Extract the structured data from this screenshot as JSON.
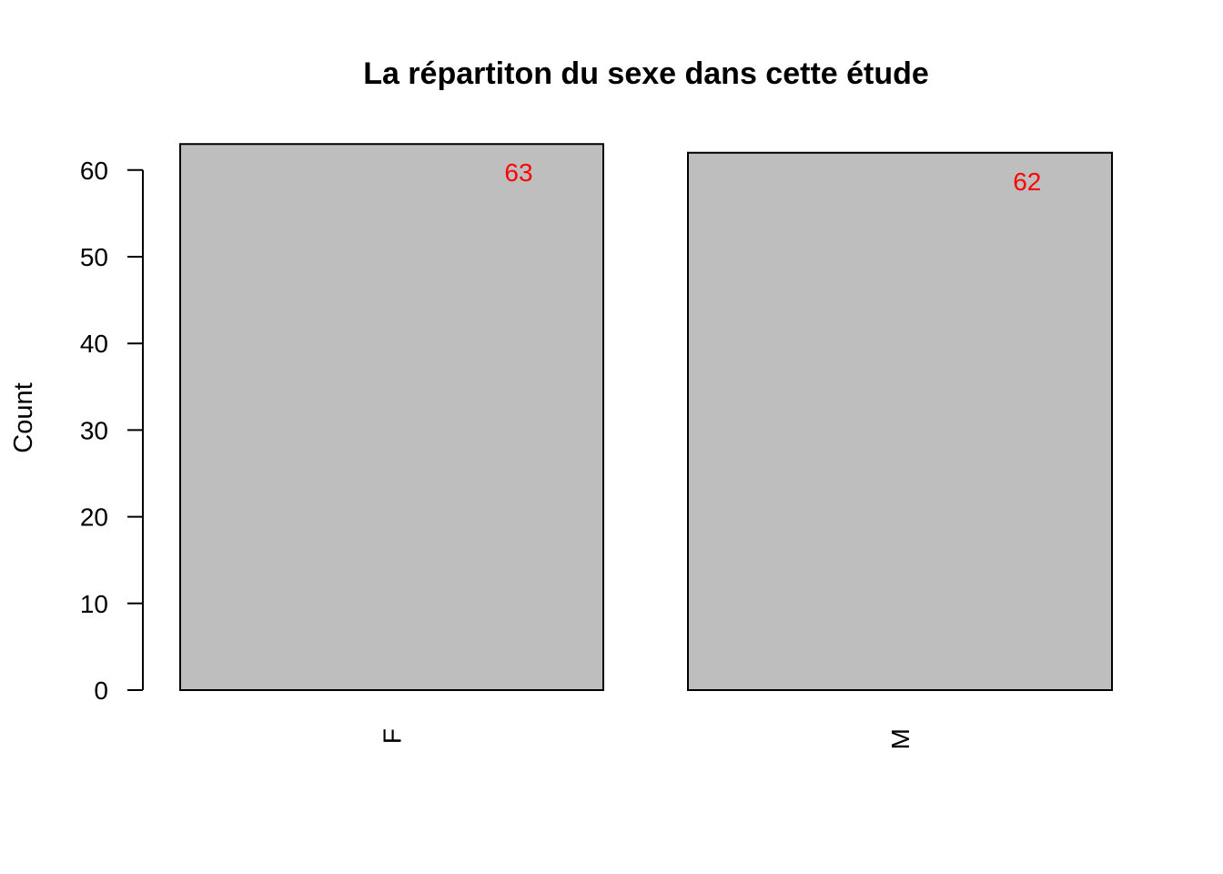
{
  "chart_data": {
    "type": "bar",
    "title": "La répartiton du sexe dans cette étude",
    "xlabel": "",
    "ylabel": "Count",
    "categories": [
      "F",
      "M"
    ],
    "values": [
      63,
      62
    ],
    "data_labels": [
      "63",
      "62"
    ],
    "yticks": [
      0,
      10,
      20,
      30,
      40,
      50,
      60
    ],
    "ytick_labels": [
      "0",
      "10",
      "20",
      "30",
      "40",
      "50",
      "60"
    ],
    "ylim": [
      0,
      63
    ],
    "grid": false,
    "legend": "none",
    "category_label_orientation": "vertical",
    "colors": {
      "bar_fill": "#bebebe",
      "bar_stroke": "#000000",
      "data_label": "#ff0000",
      "axis": "#000000"
    }
  }
}
